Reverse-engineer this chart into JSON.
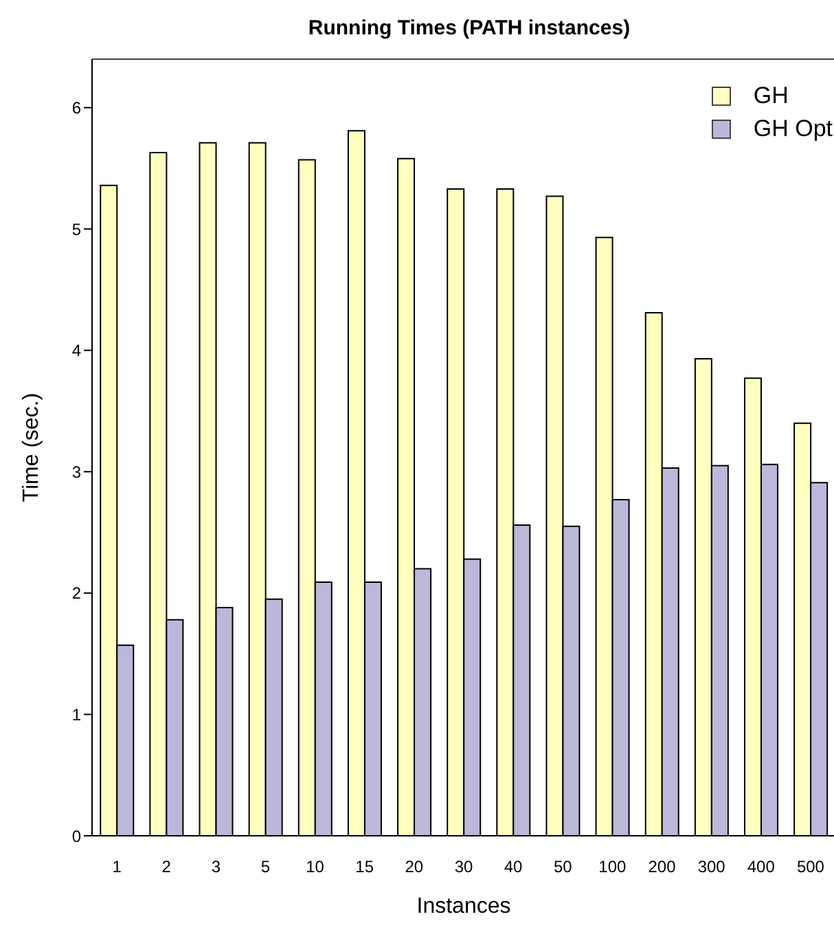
{
  "chart_data": {
    "type": "bar",
    "title": "Running Times (PATH instances)",
    "xlabel": "Instances",
    "ylabel": "Time (sec.)",
    "categories": [
      "1",
      "2",
      "3",
      "5",
      "10",
      "15",
      "20",
      "30",
      "40",
      "50",
      "100",
      "200",
      "300",
      "400",
      "500"
    ],
    "series": [
      {
        "name": "GH",
        "color": "#ffffbf",
        "values": [
          5.36,
          5.63,
          5.71,
          5.71,
          5.57,
          5.81,
          5.58,
          5.33,
          5.33,
          5.27,
          4.93,
          4.31,
          3.93,
          3.77,
          3.4
        ]
      },
      {
        "name": "GH Opt",
        "color": "#bcb8d9",
        "values": [
          1.57,
          1.78,
          1.88,
          1.95,
          2.09,
          2.09,
          2.2,
          2.28,
          2.56,
          2.55,
          2.77,
          3.03,
          3.05,
          3.06,
          2.91
        ]
      }
    ],
    "ylim": [
      0,
      6.4
    ],
    "yticks": [
      0,
      1,
      2,
      3,
      4,
      5,
      6
    ],
    "legend": "top right"
  }
}
